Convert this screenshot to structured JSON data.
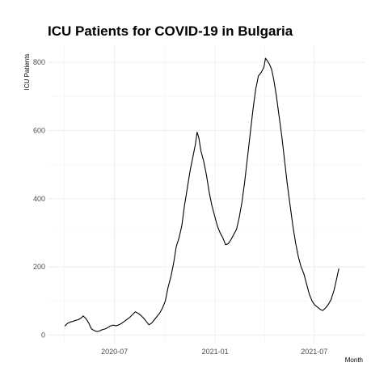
{
  "chart_data": {
    "type": "line",
    "title": "ICU Patients for COVID-19 in Bulgaria",
    "xlabel": "Month",
    "ylabel": "ICU Patients",
    "xlim": [
      "2020-03-01",
      "2021-10-01"
    ],
    "ylim": [
      -25,
      850
    ],
    "x_ticks": [
      {
        "date": "2020-07-01",
        "label": "2020-07"
      },
      {
        "date": "2021-01-01",
        "label": "2021-01"
      },
      {
        "date": "2021-07-01",
        "label": "2021-07"
      }
    ],
    "y_ticks": [
      0,
      200,
      400,
      600,
      800
    ],
    "grid": true,
    "legend": "none",
    "series": [
      {
        "color": "#000000",
        "points": [
          [
            "2020-04-01",
            26
          ],
          [
            "2020-04-06",
            34
          ],
          [
            "2020-04-11",
            38
          ],
          [
            "2020-04-16",
            40
          ],
          [
            "2020-04-21",
            43
          ],
          [
            "2020-04-26",
            45
          ],
          [
            "2020-05-01",
            50
          ],
          [
            "2020-05-05",
            56
          ],
          [
            "2020-05-10",
            48
          ],
          [
            "2020-05-15",
            35
          ],
          [
            "2020-05-20",
            18
          ],
          [
            "2020-05-25",
            13
          ],
          [
            "2020-05-30",
            10
          ],
          [
            "2020-06-04",
            12
          ],
          [
            "2020-06-09",
            16
          ],
          [
            "2020-06-14",
            18
          ],
          [
            "2020-06-19",
            22
          ],
          [
            "2020-06-24",
            27
          ],
          [
            "2020-06-29",
            29
          ],
          [
            "2020-07-04",
            27
          ],
          [
            "2020-07-09",
            30
          ],
          [
            "2020-07-14",
            34
          ],
          [
            "2020-07-19",
            40
          ],
          [
            "2020-07-24",
            46
          ],
          [
            "2020-07-29",
            52
          ],
          [
            "2020-08-03",
            60
          ],
          [
            "2020-08-08",
            68
          ],
          [
            "2020-08-13",
            64
          ],
          [
            "2020-08-18",
            58
          ],
          [
            "2020-08-23",
            50
          ],
          [
            "2020-08-28",
            40
          ],
          [
            "2020-09-02",
            30
          ],
          [
            "2020-09-07",
            35
          ],
          [
            "2020-09-12",
            45
          ],
          [
            "2020-09-17",
            55
          ],
          [
            "2020-09-22",
            65
          ],
          [
            "2020-09-27",
            80
          ],
          [
            "2020-10-02",
            100
          ],
          [
            "2020-10-07",
            140
          ],
          [
            "2020-10-12",
            170
          ],
          [
            "2020-10-17",
            210
          ],
          [
            "2020-10-22",
            260
          ],
          [
            "2020-10-27",
            285
          ],
          [
            "2020-11-01",
            320
          ],
          [
            "2020-11-06",
            380
          ],
          [
            "2020-11-11",
            430
          ],
          [
            "2020-11-16",
            480
          ],
          [
            "2020-11-21",
            520
          ],
          [
            "2020-11-26",
            560
          ],
          [
            "2020-11-29",
            595
          ],
          [
            "2020-12-02",
            580
          ],
          [
            "2020-12-06",
            540
          ],
          [
            "2020-12-11",
            510
          ],
          [
            "2020-12-16",
            470
          ],
          [
            "2020-12-21",
            420
          ],
          [
            "2020-12-26",
            380
          ],
          [
            "2020-12-31",
            350
          ],
          [
            "2021-01-05",
            320
          ],
          [
            "2021-01-10",
            300
          ],
          [
            "2021-01-15",
            285
          ],
          [
            "2021-01-20",
            265
          ],
          [
            "2021-01-25",
            268
          ],
          [
            "2021-01-30",
            280
          ],
          [
            "2021-02-04",
            295
          ],
          [
            "2021-02-09",
            310
          ],
          [
            "2021-02-14",
            345
          ],
          [
            "2021-02-19",
            390
          ],
          [
            "2021-02-24",
            450
          ],
          [
            "2021-03-01",
            520
          ],
          [
            "2021-03-06",
            590
          ],
          [
            "2021-03-11",
            660
          ],
          [
            "2021-03-16",
            720
          ],
          [
            "2021-03-21",
            760
          ],
          [
            "2021-03-26",
            770
          ],
          [
            "2021-03-31",
            785
          ],
          [
            "2021-04-03",
            812
          ],
          [
            "2021-04-06",
            805
          ],
          [
            "2021-04-10",
            795
          ],
          [
            "2021-04-14",
            780
          ],
          [
            "2021-04-18",
            750
          ],
          [
            "2021-04-23",
            700
          ],
          [
            "2021-04-28",
            640
          ],
          [
            "2021-05-03",
            580
          ],
          [
            "2021-05-08",
            510
          ],
          [
            "2021-05-13",
            440
          ],
          [
            "2021-05-18",
            380
          ],
          [
            "2021-05-23",
            320
          ],
          [
            "2021-05-28",
            270
          ],
          [
            "2021-06-02",
            230
          ],
          [
            "2021-06-07",
            200
          ],
          [
            "2021-06-12",
            180
          ],
          [
            "2021-06-17",
            150
          ],
          [
            "2021-06-22",
            120
          ],
          [
            "2021-06-27",
            100
          ],
          [
            "2021-07-02",
            88
          ],
          [
            "2021-07-07",
            82
          ],
          [
            "2021-07-12",
            75
          ],
          [
            "2021-07-17",
            72
          ],
          [
            "2021-07-22",
            80
          ],
          [
            "2021-07-27",
            90
          ],
          [
            "2021-08-01",
            105
          ],
          [
            "2021-08-06",
            130
          ],
          [
            "2021-08-11",
            165
          ],
          [
            "2021-08-15",
            195
          ]
        ]
      }
    ]
  }
}
